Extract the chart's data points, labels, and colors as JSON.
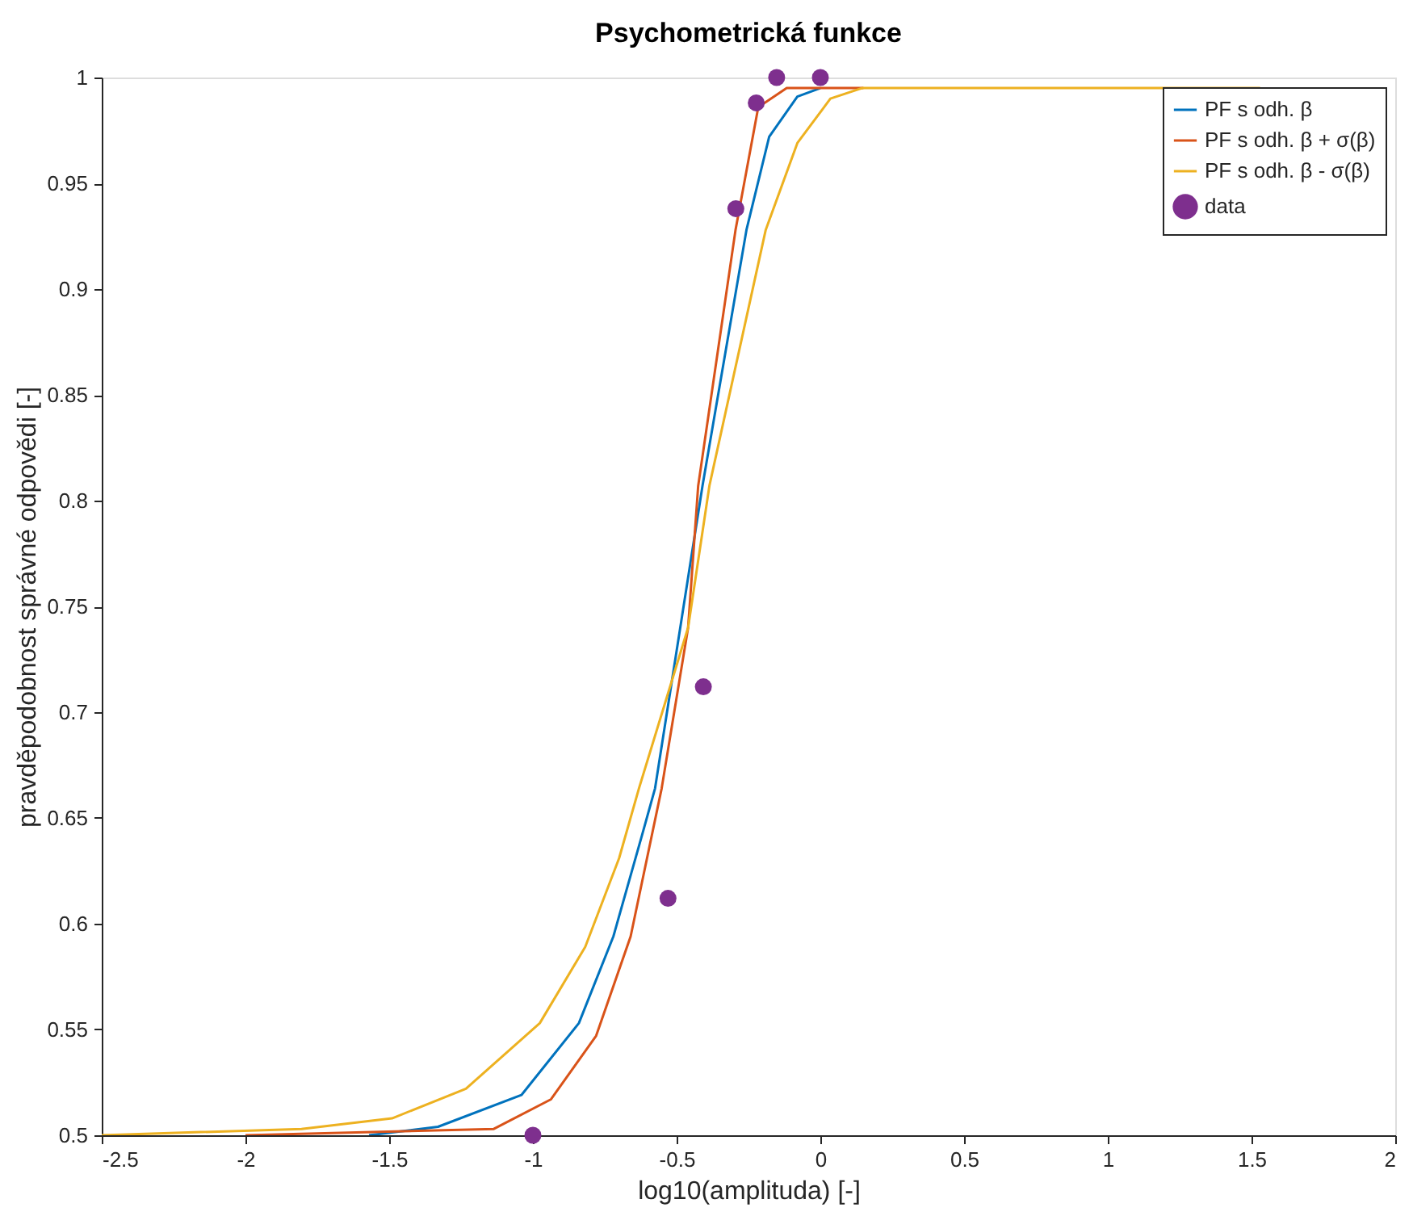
{
  "chart_data": {
    "type": "line",
    "title": "Psychometrická funkce",
    "xlabel": "log10(amplituda) [-]",
    "ylabel": "pravděpodobnost správné odpovědi [-]",
    "xlim": [
      -2.5,
      2
    ],
    "xticks": [
      -2.5,
      -2,
      -1.5,
      -1,
      -0.5,
      0,
      0.5,
      1,
      1.5,
      2
    ],
    "ylim": [
      0.5,
      1
    ],
    "yticks": [
      0.5,
      0.55,
      0.6,
      0.65,
      0.7,
      0.75,
      0.8,
      0.85,
      0.9,
      0.95,
      1
    ],
    "grid": false,
    "legend": "top right",
    "line_style": "solid",
    "series": [
      {
        "name": "PF s odh. β",
        "color": "#0072bd",
        "marker": "none",
        "x": [
          -1.57,
          -1.33,
          -1.04,
          -0.84,
          -0.72,
          -0.62,
          -0.575,
          -0.41,
          -0.257,
          -0.178,
          -0.08,
          0.0
        ],
        "values": [
          0.5,
          0.504,
          0.519,
          0.553,
          0.594,
          0.642,
          0.664,
          0.807,
          0.928,
          0.972,
          0.991,
          0.995
        ]
      },
      {
        "name": "PF s odh. β + σ(β)",
        "color": "#d95319",
        "marker": "none",
        "x": [
          -2.0,
          -1.136,
          -0.937,
          -0.78,
          -0.66,
          -0.552,
          -0.46,
          -0.425,
          -0.295,
          -0.216,
          -0.117,
          0.15
        ],
        "values": [
          0.5,
          0.503,
          0.517,
          0.547,
          0.594,
          0.664,
          0.74,
          0.807,
          0.928,
          0.986,
          0.995,
          0.995
        ]
      },
      {
        "name": "PF s odh. β - σ(β)",
        "color": "#edb120",
        "marker": "none",
        "x": [
          -2.5,
          -1.805,
          -1.49,
          -1.233,
          -0.976,
          -0.818,
          -0.7,
          -0.631,
          -0.46,
          -0.386,
          -0.19,
          -0.08,
          0.035,
          0.145,
          1.53
        ],
        "values": [
          0.5,
          0.503,
          0.508,
          0.522,
          0.553,
          0.589,
          0.631,
          0.664,
          0.74,
          0.807,
          0.928,
          0.969,
          0.99,
          0.995,
          0.995
        ]
      },
      {
        "name": "data",
        "color": "#7e2f8e",
        "type": "scatter",
        "marker": "circle",
        "x": [
          -1.0,
          -0.53,
          -0.407,
          -0.294,
          -0.223,
          -0.152,
          0.0
        ],
        "values": [
          0.5,
          0.612,
          0.712,
          0.938,
          0.988,
          1.0,
          1.0
        ]
      }
    ]
  }
}
